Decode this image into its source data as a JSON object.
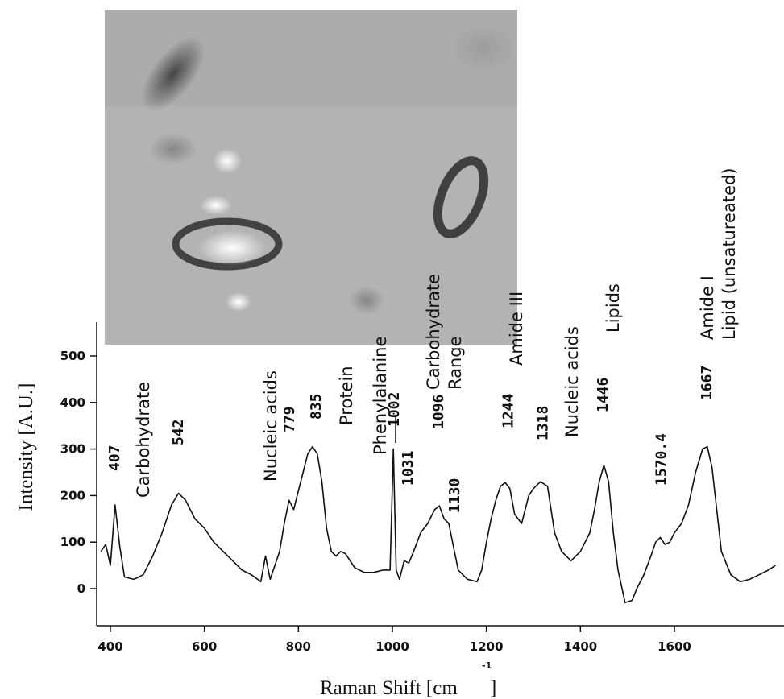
{
  "chart_data": {
    "type": "line",
    "xlabel": "Raman Shift [cm",
    "xlabel_sup": "-1",
    "xlabel_close": "]",
    "ylabel": "Intensity [A.U.]",
    "xlim": [
      375,
      1815
    ],
    "ylim": [
      -60,
      560
    ],
    "xticks": [
      "400",
      "600",
      "800",
      "1000",
      "1200",
      "1400",
      "1600"
    ],
    "yticks": [
      "0",
      "100",
      "200",
      "300",
      "400",
      "500"
    ],
    "line_color": "#111111",
    "inset_image": "grayscale microscopy image of cells",
    "peak_labels": [
      {
        "text": "407",
        "x": 407
      },
      {
        "text": "542",
        "x": 542
      },
      {
        "text": "779",
        "x": 779
      },
      {
        "text": "835",
        "x": 835
      },
      {
        "text": "1002",
        "x": 1002
      },
      {
        "text": "1031",
        "x": 1031
      },
      {
        "text": "1096",
        "x": 1096
      },
      {
        "text": "1130",
        "x": 1130
      },
      {
        "text": "1244",
        "x": 1244
      },
      {
        "text": "1318",
        "x": 1318
      },
      {
        "text": "1446",
        "x": 1446
      },
      {
        "text": "1570.4",
        "x": 1570
      },
      {
        "text": "1667",
        "x": 1667
      }
    ],
    "annotations": [
      "Carbohydrate",
      "Nucleic acids",
      "Protein",
      "Phenylalanine",
      "Carbohydrate",
      "Range",
      "Amide III",
      "Nucleic acids",
      "Lipids",
      "Amide I",
      "Lipid (unsatureated)"
    ],
    "series": [
      {
        "x": [
          380,
          390,
          400,
          410,
          420,
          430,
          450,
          470,
          490,
          510,
          530,
          545,
          560,
          580,
          600,
          620,
          640,
          660,
          680,
          700,
          720,
          730,
          740,
          760,
          770,
          780,
          790,
          800,
          810,
          820,
          830,
          840,
          850,
          860,
          870,
          880,
          890,
          900,
          920,
          940,
          960,
          980,
          995,
          1002,
          1008,
          1015,
          1025,
          1035,
          1045,
          1060,
          1075,
          1090,
          1100,
          1110,
          1120,
          1130,
          1140,
          1160,
          1180,
          1190,
          1200,
          1210,
          1220,
          1230,
          1240,
          1250,
          1260,
          1275,
          1290,
          1300,
          1315,
          1330,
          1345,
          1360,
          1380,
          1400,
          1420,
          1430,
          1440,
          1450,
          1460,
          1470,
          1480,
          1495,
          1510,
          1520,
          1535,
          1550,
          1560,
          1570,
          1580,
          1590,
          1600,
          1615,
          1630,
          1645,
          1660,
          1670,
          1680,
          1690,
          1700,
          1720,
          1740,
          1760,
          1780,
          1800,
          1815
        ],
        "y": [
          80,
          95,
          50,
          180,
          90,
          25,
          20,
          30,
          70,
          120,
          180,
          205,
          190,
          150,
          130,
          100,
          80,
          60,
          40,
          30,
          15,
          70,
          20,
          80,
          140,
          190,
          170,
          210,
          250,
          290,
          305,
          290,
          230,
          130,
          80,
          70,
          80,
          75,
          45,
          35,
          35,
          40,
          40,
          300,
          40,
          20,
          60,
          55,
          80,
          120,
          140,
          170,
          178,
          150,
          140,
          90,
          40,
          20,
          15,
          40,
          100,
          150,
          190,
          220,
          228,
          215,
          160,
          140,
          200,
          215,
          230,
          220,
          120,
          80,
          60,
          80,
          120,
          170,
          230,
          265,
          230,
          120,
          40,
          -30,
          -25,
          0,
          30,
          70,
          100,
          110,
          95,
          100,
          120,
          140,
          180,
          250,
          300,
          305,
          260,
          170,
          80,
          30,
          15,
          20,
          30,
          40,
          50
        ]
      }
    ]
  }
}
